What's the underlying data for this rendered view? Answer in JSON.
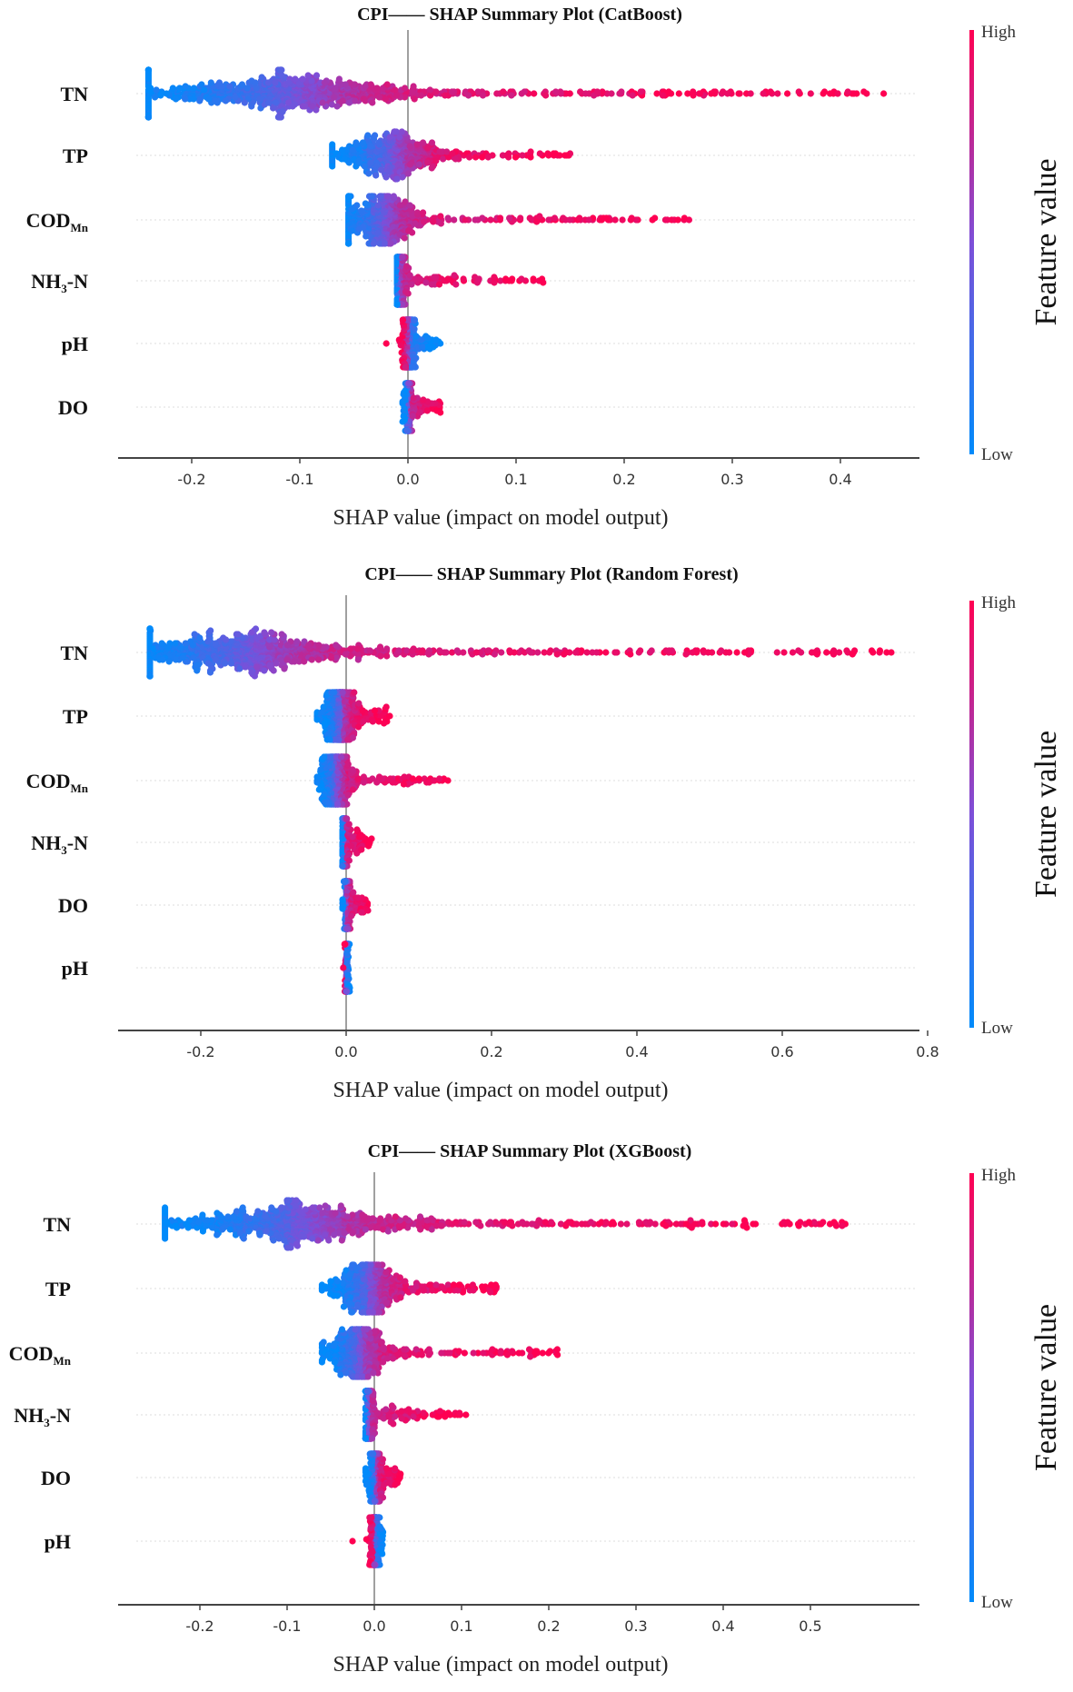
{
  "chart_data": [
    {
      "type": "scatter",
      "subtype": "shap-beeswarm",
      "title": "CPI—— SHAP Summary Plot (CatBoost)",
      "xlabel": "SHAP value (impact on model output)",
      "xlim": [
        -0.27,
        0.47
      ],
      "xticks": [
        -0.2,
        -0.1,
        0.0,
        0.1,
        0.2,
        0.3,
        0.4
      ],
      "xtick_labels": [
        "-0.2",
        "-0.1",
        "0.0",
        "0.1",
        "0.2",
        "0.3",
        "0.4"
      ],
      "colorbar": {
        "label": "Feature value",
        "high": "High",
        "low": "Low",
        "high_color": "#ff0052",
        "low_color": "#008bfb"
      },
      "features": [
        {
          "name": "TN",
          "main": "TN",
          "sub": "",
          "suffix": "",
          "min": -0.24,
          "max": 0.44,
          "mode": -0.12,
          "spread": 0.07,
          "high_positive": true,
          "n": 900
        },
        {
          "name": "TP",
          "main": "TP",
          "sub": "",
          "suffix": "",
          "min": -0.07,
          "max": 0.15,
          "mode": -0.02,
          "spread": 0.025,
          "high_positive": true,
          "n": 500
        },
        {
          "name": "CODMn",
          "main": "COD",
          "sub": "Mn",
          "suffix": "",
          "min": -0.055,
          "max": 0.26,
          "mode": -0.025,
          "spread": 0.02,
          "high_positive": true,
          "n": 500
        },
        {
          "name": "NH3-N",
          "main": "NH",
          "sub": "3",
          "suffix": "-N",
          "min": -0.01,
          "max": 0.125,
          "mode": -0.008,
          "spread": 0.003,
          "high_positive": true,
          "n": 350
        },
        {
          "name": "pH",
          "main": "pH",
          "sub": "",
          "suffix": "",
          "min": -0.02,
          "max": 0.03,
          "mode": 0.0,
          "spread": 0.003,
          "high_positive": false,
          "n": 300
        },
        {
          "name": "DO",
          "main": "DO",
          "sub": "",
          "suffix": "",
          "min": -0.005,
          "max": 0.03,
          "mode": 0.0,
          "spread": 0.002,
          "high_positive": true,
          "n": 250
        }
      ]
    },
    {
      "type": "scatter",
      "subtype": "shap-beeswarm",
      "title": "CPI—— SHAP Summary Plot (Random Forest)",
      "xlabel": "SHAP value (impact on model output)",
      "xlim": [
        -0.31,
        0.8
      ],
      "xticks": [
        -0.2,
        0.0,
        0.2,
        0.4,
        0.6,
        0.8
      ],
      "xtick_labels": [
        "-0.2",
        "0.0",
        "0.2",
        "0.4",
        "0.6",
        "0.8"
      ],
      "colorbar": {
        "label": "Feature value",
        "high": "High",
        "low": "Low",
        "high_color": "#ff0052",
        "low_color": "#008bfb"
      },
      "features": [
        {
          "name": "TN",
          "main": "TN",
          "sub": "",
          "suffix": "",
          "min": -0.27,
          "max": 0.75,
          "mode": -0.15,
          "spread": 0.08,
          "high_positive": true,
          "n": 900
        },
        {
          "name": "TP",
          "main": "TP",
          "sub": "",
          "suffix": "",
          "min": -0.04,
          "max": 0.06,
          "mode": -0.01,
          "spread": 0.012,
          "high_positive": true,
          "n": 450
        },
        {
          "name": "CODMn",
          "main": "COD",
          "sub": "Mn",
          "suffix": "",
          "min": -0.04,
          "max": 0.14,
          "mode": -0.015,
          "spread": 0.012,
          "high_positive": true,
          "n": 450
        },
        {
          "name": "NH3-N",
          "main": "NH",
          "sub": "3",
          "suffix": "-N",
          "min": -0.005,
          "max": 0.035,
          "mode": -0.003,
          "spread": 0.002,
          "high_positive": true,
          "n": 300
        },
        {
          "name": "DO",
          "main": "DO",
          "sub": "",
          "suffix": "",
          "min": -0.005,
          "max": 0.03,
          "mode": 0.0,
          "spread": 0.002,
          "high_positive": true,
          "n": 250
        },
        {
          "name": "pH",
          "main": "pH",
          "sub": "",
          "suffix": "",
          "min": -0.004,
          "max": 0.005,
          "mode": 0.0,
          "spread": 0.001,
          "high_positive": false,
          "n": 250
        }
      ]
    },
    {
      "type": "scatter",
      "subtype": "shap-beeswarm",
      "title": "CPI—— SHAP Summary Plot (XGBoost)",
      "xlabel": "SHAP value (impact on model output)",
      "xlim": [
        -0.29,
        0.63
      ],
      "xticks": [
        -0.2,
        -0.1,
        0.0,
        0.1,
        0.2,
        0.3,
        0.4,
        0.5
      ],
      "xtick_labels": [
        "-0.2",
        "-0.1",
        "0.0",
        "0.1",
        "0.2",
        "0.3",
        "0.4",
        "0.5"
      ],
      "colorbar": {
        "label": "Feature value",
        "high": "High",
        "low": "Low",
        "high_color": "#ff0052",
        "low_color": "#008bfb"
      },
      "features": [
        {
          "name": "TN",
          "main": "TN",
          "sub": "",
          "suffix": "",
          "min": -0.24,
          "max": 0.54,
          "mode": -0.1,
          "spread": 0.07,
          "high_positive": true,
          "n": 900
        },
        {
          "name": "TP",
          "main": "TP",
          "sub": "",
          "suffix": "",
          "min": -0.06,
          "max": 0.14,
          "mode": -0.01,
          "spread": 0.02,
          "high_positive": true,
          "n": 550
        },
        {
          "name": "CODMn",
          "main": "COD",
          "sub": "Mn",
          "suffix": "",
          "min": -0.06,
          "max": 0.21,
          "mode": -0.02,
          "spread": 0.018,
          "high_positive": true,
          "n": 500
        },
        {
          "name": "NH3-N",
          "main": "NH",
          "sub": "3",
          "suffix": "-N",
          "min": -0.01,
          "max": 0.105,
          "mode": -0.007,
          "spread": 0.003,
          "high_positive": true,
          "n": 350
        },
        {
          "name": "DO",
          "main": "DO",
          "sub": "",
          "suffix": "",
          "min": -0.01,
          "max": 0.03,
          "mode": 0.0,
          "spread": 0.004,
          "high_positive": true,
          "n": 300
        },
        {
          "name": "pH",
          "main": "pH",
          "sub": "",
          "suffix": "",
          "min": -0.025,
          "max": 0.01,
          "mode": 0.0,
          "spread": 0.003,
          "high_positive": false,
          "n": 250
        }
      ]
    }
  ]
}
